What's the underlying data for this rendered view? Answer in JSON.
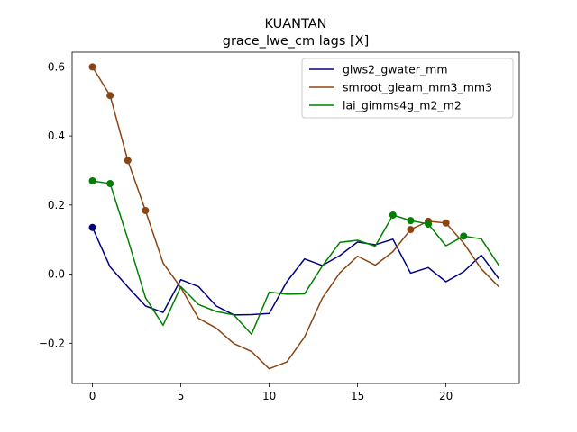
{
  "chart_data": {
    "type": "line",
    "title": "KUANTAN",
    "subtitle": "grace_lwe_cm lags [X]",
    "xlabel": "",
    "ylabel": "",
    "xlim": [
      -1.15,
      24.15
    ],
    "ylim": [
      -0.3165,
      0.6427
    ],
    "xticks": [
      0,
      5,
      10,
      15,
      20
    ],
    "yticks": [
      -0.2,
      0.0,
      0.2,
      0.4,
      0.6
    ],
    "ytick_labels": [
      "−0.2",
      "0.0",
      "0.2",
      "0.4",
      "0.6"
    ],
    "grid": false,
    "legend": "top-right",
    "x": [
      0,
      1,
      2,
      3,
      4,
      5,
      6,
      7,
      8,
      9,
      10,
      11,
      12,
      13,
      14,
      15,
      16,
      17,
      18,
      19,
      20,
      21,
      22,
      23
    ],
    "series": [
      {
        "name": "glws2_gwater_mm",
        "color": "#000080",
        "values": [
          0.135,
          0.021,
          -0.037,
          -0.092,
          -0.111,
          -0.016,
          -0.036,
          -0.092,
          -0.118,
          -0.117,
          -0.114,
          -0.022,
          0.044,
          0.025,
          0.054,
          0.093,
          0.085,
          0.101,
          0.003,
          0.019,
          -0.022,
          0.007,
          0.055,
          -0.014
        ],
        "markers": [
          0
        ]
      },
      {
        "name": "smroot_gleam_mm3_mm3",
        "color": "#8B4513",
        "values": [
          0.6,
          0.517,
          0.329,
          0.184,
          0.032,
          -0.039,
          -0.128,
          -0.156,
          -0.201,
          -0.224,
          -0.274,
          -0.254,
          -0.182,
          -0.07,
          0.004,
          0.052,
          0.026,
          0.065,
          0.129,
          0.153,
          0.148,
          0.09,
          0.015,
          -0.037
        ],
        "markers": [
          0,
          1,
          2,
          3,
          18,
          19,
          20
        ]
      },
      {
        "name": "lai_gimms4g_m2_m2",
        "color": "#008000",
        "values": [
          0.27,
          0.262,
          0.102,
          -0.068,
          -0.148,
          -0.036,
          -0.088,
          -0.108,
          -0.118,
          -0.174,
          -0.052,
          -0.058,
          -0.057,
          0.023,
          0.092,
          0.098,
          0.081,
          0.171,
          0.155,
          0.145,
          0.082,
          0.11,
          0.102,
          0.025
        ],
        "markers": [
          0,
          1,
          17,
          18,
          19,
          21
        ]
      }
    ]
  }
}
